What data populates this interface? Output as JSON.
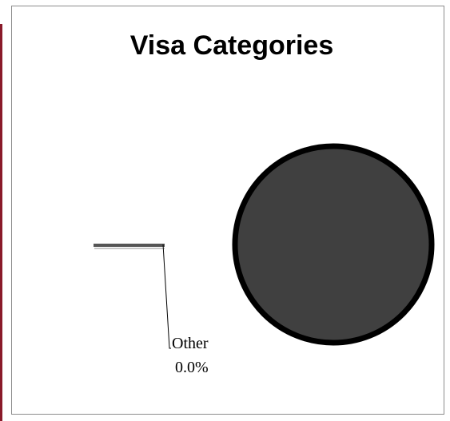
{
  "chart_data": {
    "type": "pie",
    "title": "Visa Categories",
    "slices": [
      {
        "label": "Other",
        "value": 0.0,
        "value_label": "0.0%"
      },
      {
        "label": "",
        "value": 100.0,
        "value_label": ""
      }
    ],
    "colors": {
      "pie_fill": "#404040",
      "pie_stroke": "#000000",
      "other_slice": "#c8c8c8"
    },
    "legend": "none"
  }
}
